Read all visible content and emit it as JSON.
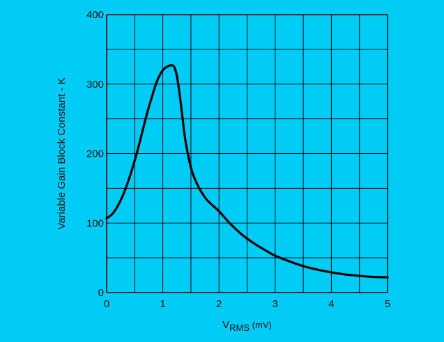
{
  "colors": {
    "background": "#00CCF5",
    "grid": "#000000",
    "curve": "#000000"
  },
  "chart_data": {
    "type": "line",
    "title": "",
    "xlabel_main": "V",
    "xlabel_sub": "RMS",
    "xlabel_unit": " (mV)",
    "ylabel": "Variable Gain Block Constant - K",
    "xlim": [
      0,
      5
    ],
    "ylim": [
      0,
      400
    ],
    "grid": true,
    "x_ticks": [
      "0",
      "1",
      "2",
      "3",
      "4",
      "5"
    ],
    "y_ticks": [
      "0",
      "100",
      "200",
      "300",
      "400"
    ],
    "series": [
      {
        "x": [
          0,
          0.1,
          0.2,
          0.3,
          0.4,
          0.5,
          0.6,
          0.7,
          0.8,
          0.9,
          1.0,
          1.1,
          1.15,
          1.2,
          1.25,
          1.3,
          1.35,
          1.4,
          1.5,
          1.6,
          1.7,
          1.8,
          2.0,
          2.2,
          2.4,
          2.6,
          2.8,
          3.0,
          3.25,
          3.5,
          3.75,
          4.0,
          4.25,
          4.5,
          4.75,
          5.0
        ],
        "values": [
          107,
          113,
          125,
          142,
          164,
          190,
          220,
          252,
          280,
          305,
          320,
          326,
          327,
          325,
          312,
          285,
          252,
          220,
          180,
          158,
          143,
          132,
          117,
          99,
          84,
          72,
          62,
          53,
          45,
          38,
          33,
          29,
          26,
          24,
          22.5,
          22
        ]
      }
    ]
  }
}
